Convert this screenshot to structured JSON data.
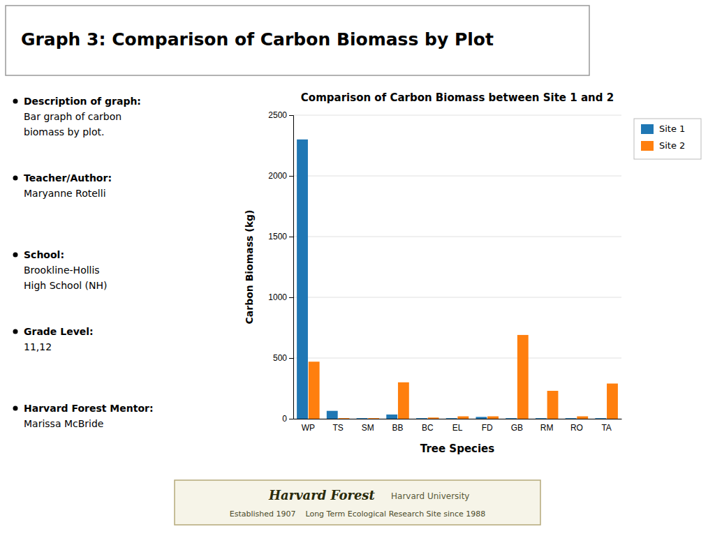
{
  "header": {
    "title": [
      "Graph 3",
      ":",
      " Comparison of Carbon Biomass by Plot"
    ]
  },
  "sidebar": [
    {
      "label": "Description of graph:",
      "lines": [
        "Bar graph of carbon",
        "biomass by plot."
      ]
    },
    {
      "label": "Teacher/Author:",
      "lines": [
        "Maryanne Rotelli"
      ]
    },
    {
      "label": "School:",
      "lines": [
        "Brookline-Hollis",
        "High School (NH)"
      ]
    },
    {
      "label": "Grade Level:",
      "lines": [
        "11,12"
      ]
    },
    {
      "label": "Harvard Forest Mentor:",
      "lines": [
        "Marissa McBride"
      ]
    }
  ],
  "footer": {
    "title": "Harvard Forest",
    "affiliation": "Harvard University",
    "subtitle": "Established 1907    Long Term Ecological Research Site since 1988"
  },
  "chart_data": {
    "type": "bar",
    "title": "Comparison of Carbon Biomass between Site 1 and 2",
    "xlabel": "Tree Species",
    "ylabel": "Carbon Biomass (kg)",
    "categories": [
      "WP",
      "TS",
      "SM",
      "BB",
      "BC",
      "EL",
      "FD",
      "GB",
      "RM",
      "RO",
      "TA"
    ],
    "series": [
      {
        "name": "Site 1",
        "values": [
          2300,
          65,
          5,
          35,
          5,
          5,
          15,
          5,
          5,
          5,
          5
        ]
      },
      {
        "name": "Site 2",
        "values": [
          470,
          5,
          5,
          300,
          10,
          20,
          20,
          690,
          230,
          20,
          290
        ]
      }
    ],
    "ylim": [
      0,
      2500
    ],
    "yticks": [
      0,
      500,
      1000,
      1500,
      2000,
      2500
    ],
    "grid": true,
    "legend": "upper right"
  }
}
